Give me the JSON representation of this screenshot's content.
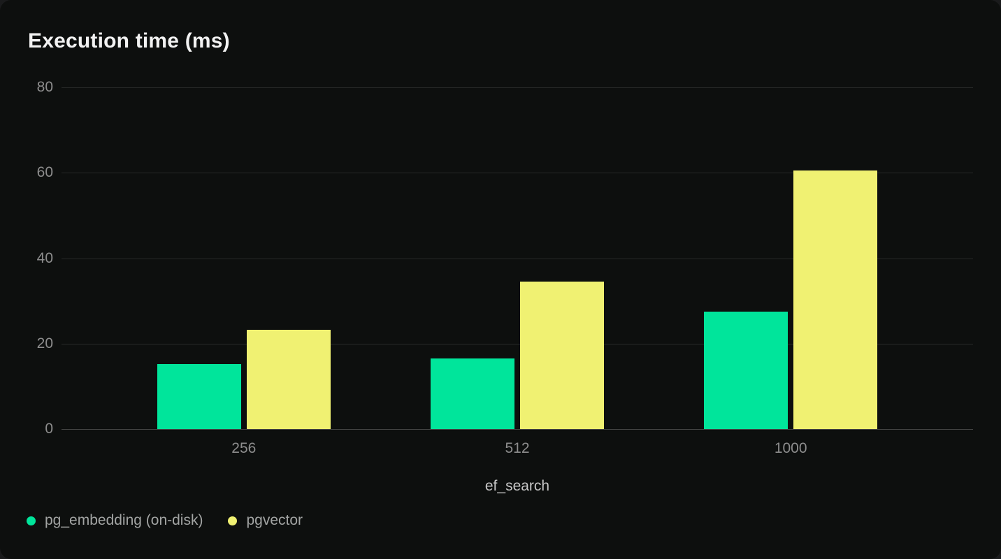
{
  "card": {
    "background": "#0d0f0e"
  },
  "chart_data": {
    "type": "bar",
    "title": "Execution time (ms)",
    "xlabel": "ef_search",
    "ylabel": "",
    "categories": [
      "256",
      "512",
      "1000"
    ],
    "series": [
      {
        "name": "pg_embedding (on-disk)",
        "color": "#00e59b",
        "values": [
          15.2,
          16.5,
          27.5
        ]
      },
      {
        "name": "pgvector",
        "color": "#f0f172",
        "values": [
          23.2,
          34.5,
          60.5
        ]
      }
    ],
    "ylim": [
      0,
      80
    ],
    "yticks": [
      0,
      20,
      40,
      60,
      80
    ],
    "grid": "horizontal",
    "legend_position": "bottom-left",
    "colors": {
      "title_text": "#f2f2f2",
      "tick_text": "#8d8d8d",
      "axis_title_text": "#c6c6c6",
      "legend_text": "#a2a4a3",
      "gridline": "#272928",
      "zero_line": "#454545"
    }
  }
}
